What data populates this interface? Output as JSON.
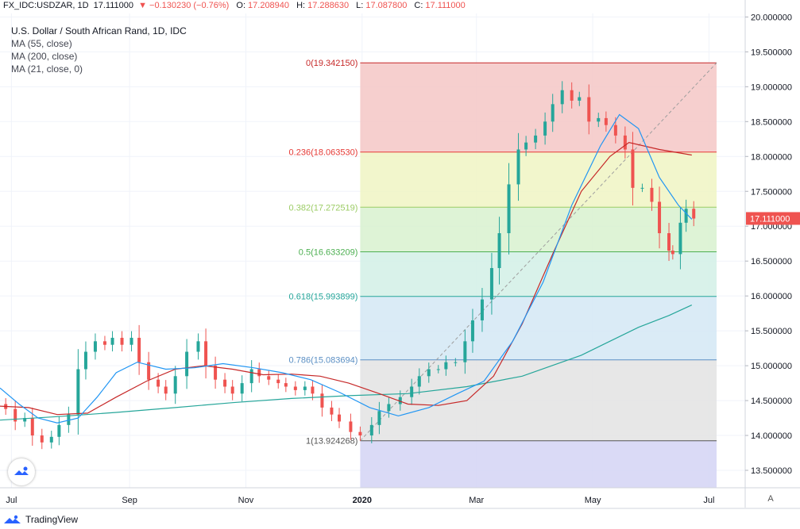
{
  "header": {
    "symbol": "FX_IDC:USDZAR, 1D",
    "last": "17.111000",
    "change": "−0.130230 (−0.76%)",
    "o_label": "O:",
    "o_value": "17.208940",
    "h_label": "H:",
    "h_value": "17.288630",
    "l_label": "L:",
    "l_value": "17.087800",
    "c_label": "C:",
    "c_value": "17.111000"
  },
  "legend": {
    "title": "U.S. Dollar / South African Rand, 1D, IDC",
    "ma1": "MA (55, close)",
    "ma2": "MA (200, close)",
    "ma3": "MA (21, close, 0)"
  },
  "footer": {
    "brand": "TradingView"
  },
  "axis_button": "A",
  "colors": {
    "up": "#26a69a",
    "down": "#ef5350",
    "ma55": "#2196f3",
    "ma200": "#26a69a",
    "ma21": "#c62828",
    "price_label_bg": "#ef5350"
  },
  "chart_data": {
    "type": "candlestick",
    "title": "U.S. Dollar / South African Rand, 1D, IDC",
    "ylim": [
      13.25,
      20.05
    ],
    "y_ticks": [
      "20.000000",
      "19.500000",
      "19.000000",
      "18.500000",
      "18.000000",
      "17.500000",
      "17.000000",
      "16.500000",
      "16.000000",
      "15.500000",
      "15.000000",
      "14.500000",
      "14.000000",
      "13.500000"
    ],
    "y_tick_values": [
      20.0,
      19.5,
      19.0,
      18.5,
      18.0,
      17.5,
      17.0,
      16.5,
      16.0,
      15.5,
      15.0,
      14.5,
      14.0,
      13.5
    ],
    "x_ticks": [
      "Jul",
      "Sep",
      "Nov",
      "2020",
      "Mar",
      "May",
      "Jul"
    ],
    "x_tick_dates": [
      "2019-07-01",
      "2019-09-01",
      "2019-11-01",
      "2020-01-01",
      "2020-03-01",
      "2020-05-01",
      "2020-07-01"
    ],
    "x_range": [
      "2019-06-25",
      "2020-07-20"
    ],
    "last_price": {
      "label": "17.111000",
      "value": 17.111
    },
    "fibonacci": {
      "start_date": "2019-12-31",
      "end_date": "2020-07-05",
      "levels": [
        {
          "label": "0(19.342150)",
          "value": 19.34215,
          "color": "#c62828",
          "fill": "#f4c7c6"
        },
        {
          "label": "0.236(18.063530)",
          "value": 18.06353,
          "color": "#e53935",
          "fill": "#f0f4c3"
        },
        {
          "label": "0.382(17.272519)",
          "value": 17.272519,
          "color": "#9ccc65",
          "fill": "#d8f1cf"
        },
        {
          "label": "0.5(16.633209)",
          "value": 16.633209,
          "color": "#4caf50",
          "fill": "#d2f0e6"
        },
        {
          "label": "0.618(15.993899)",
          "value": 15.993899,
          "color": "#26a69a",
          "fill": "#d3e7f4"
        },
        {
          "label": "0.786(15.083694)",
          "value": 15.083694,
          "color": "#5b8fc4",
          "fill": "#e3e3e3"
        },
        {
          "label": "1(13.924268)",
          "value": 13.924268,
          "color": "#555555",
          "fill": "#d3d3f5"
        }
      ],
      "trend_start": {
        "date": "2019-12-31",
        "value": 13.924268
      },
      "trend_end": {
        "date": "2020-07-05",
        "value": 19.34215
      }
    },
    "closes": [
      [
        "2019-06-26",
        14.45
      ],
      [
        "2019-06-28",
        14.38
      ],
      [
        "2019-07-03",
        14.2
      ],
      [
        "2019-07-08",
        14.25
      ],
      [
        "2019-07-12",
        14.0
      ],
      [
        "2019-07-17",
        13.9
      ],
      [
        "2019-07-22",
        13.98
      ],
      [
        "2019-07-26",
        14.15
      ],
      [
        "2019-07-31",
        14.3
      ],
      [
        "2019-08-05",
        14.95
      ],
      [
        "2019-08-09",
        15.2
      ],
      [
        "2019-08-14",
        15.35
      ],
      [
        "2019-08-19",
        15.3
      ],
      [
        "2019-08-23",
        15.4
      ],
      [
        "2019-08-28",
        15.3
      ],
      [
        "2019-09-02",
        15.4
      ],
      [
        "2019-09-06",
        15.05
      ],
      [
        "2019-09-11",
        14.8
      ],
      [
        "2019-09-16",
        14.7
      ],
      [
        "2019-09-20",
        14.6
      ],
      [
        "2019-09-25",
        14.85
      ],
      [
        "2019-10-01",
        15.2
      ],
      [
        "2019-10-07",
        15.35
      ],
      [
        "2019-10-11",
        15.0
      ],
      [
        "2019-10-16",
        14.8
      ],
      [
        "2019-10-21",
        14.7
      ],
      [
        "2019-10-25",
        14.6
      ],
      [
        "2019-10-30",
        14.75
      ],
      [
        "2019-11-04",
        14.95
      ],
      [
        "2019-11-08",
        14.85
      ],
      [
        "2019-11-13",
        14.8
      ],
      [
        "2019-11-18",
        14.75
      ],
      [
        "2019-11-22",
        14.7
      ],
      [
        "2019-11-27",
        14.65
      ],
      [
        "2019-12-02",
        14.7
      ],
      [
        "2019-12-06",
        14.6
      ],
      [
        "2019-12-11",
        14.4
      ],
      [
        "2019-12-16",
        14.3
      ],
      [
        "2019-12-20",
        14.2
      ],
      [
        "2019-12-26",
        14.05
      ],
      [
        "2019-12-31",
        14.0
      ],
      [
        "2020-01-06",
        14.15
      ],
      [
        "2020-01-10",
        14.35
      ],
      [
        "2020-01-15",
        14.45
      ],
      [
        "2020-01-21",
        14.55
      ],
      [
        "2020-01-27",
        14.7
      ],
      [
        "2020-01-31",
        14.85
      ],
      [
        "2020-02-05",
        14.95
      ],
      [
        "2020-02-10",
        14.95
      ],
      [
        "2020-02-14",
        15.05
      ],
      [
        "2020-02-19",
        15.05
      ],
      [
        "2020-02-24",
        15.35
      ],
      [
        "2020-02-28",
        15.65
      ],
      [
        "2020-03-04",
        15.95
      ],
      [
        "2020-03-09",
        16.4
      ],
      [
        "2020-03-13",
        16.9
      ],
      [
        "2020-03-18",
        17.6
      ],
      [
        "2020-03-23",
        18.1
      ],
      [
        "2020-03-27",
        18.2
      ],
      [
        "2020-04-01",
        18.3
      ],
      [
        "2020-04-06",
        18.5
      ],
      [
        "2020-04-10",
        18.75
      ],
      [
        "2020-04-15",
        18.95
      ],
      [
        "2020-04-20",
        18.8
      ],
      [
        "2020-04-24",
        18.85
      ],
      [
        "2020-04-29",
        18.5
      ],
      [
        "2020-05-04",
        18.55
      ],
      [
        "2020-05-08",
        18.45
      ],
      [
        "2020-05-13",
        18.3
      ],
      [
        "2020-05-18",
        18.1
      ],
      [
        "2020-05-22",
        17.55
      ],
      [
        "2020-05-27",
        17.55
      ],
      [
        "2020-06-01",
        17.35
      ],
      [
        "2020-06-05",
        16.9
      ],
      [
        "2020-06-10",
        16.65
      ],
      [
        "2020-06-12",
        16.6
      ],
      [
        "2020-06-16",
        17.05
      ],
      [
        "2020-06-19",
        17.25
      ],
      [
        "2020-06-23",
        17.11
      ]
    ],
    "ma55": [
      [
        "2019-06-25",
        14.68
      ],
      [
        "2019-07-05",
        14.45
      ],
      [
        "2019-07-15",
        14.25
      ],
      [
        "2019-07-25",
        14.18
      ],
      [
        "2019-08-05",
        14.25
      ],
      [
        "2019-08-15",
        14.55
      ],
      [
        "2019-08-25",
        14.9
      ],
      [
        "2019-09-05",
        15.05
      ],
      [
        "2019-09-20",
        14.95
      ],
      [
        "2019-10-05",
        14.97
      ],
      [
        "2019-10-20",
        15.03
      ],
      [
        "2019-11-05",
        14.97
      ],
      [
        "2019-11-20",
        14.9
      ],
      [
        "2019-12-05",
        14.8
      ],
      [
        "2019-12-20",
        14.62
      ],
      [
        "2020-01-05",
        14.4
      ],
      [
        "2020-01-20",
        14.28
      ],
      [
        "2020-02-05",
        14.4
      ],
      [
        "2020-02-20",
        14.6
      ],
      [
        "2020-03-05",
        14.78
      ],
      [
        "2020-03-20",
        15.35
      ],
      [
        "2020-04-05",
        16.2
      ],
      [
        "2020-04-20",
        17.3
      ],
      [
        "2020-05-05",
        18.15
      ],
      [
        "2020-05-15",
        18.6
      ],
      [
        "2020-05-25",
        18.4
      ],
      [
        "2020-06-05",
        17.7
      ],
      [
        "2020-06-15",
        17.3
      ],
      [
        "2020-06-22",
        17.1
      ]
    ],
    "ma200": [
      [
        "2019-06-25",
        14.22
      ],
      [
        "2019-07-25",
        14.27
      ],
      [
        "2019-08-25",
        14.33
      ],
      [
        "2019-09-25",
        14.4
      ],
      [
        "2019-10-25",
        14.47
      ],
      [
        "2019-11-25",
        14.53
      ],
      [
        "2019-12-25",
        14.57
      ],
      [
        "2020-01-25",
        14.6
      ],
      [
        "2020-02-25",
        14.7
      ],
      [
        "2020-03-25",
        14.85
      ],
      [
        "2020-04-25",
        15.15
      ],
      [
        "2020-05-25",
        15.55
      ],
      [
        "2020-06-10",
        15.72
      ],
      [
        "2020-06-22",
        15.87
      ]
    ],
    "ma21": [
      [
        "2019-06-25",
        14.42
      ],
      [
        "2019-07-10",
        14.4
      ],
      [
        "2019-07-25",
        14.3
      ],
      [
        "2019-08-10",
        14.32
      ],
      [
        "2019-08-25",
        14.55
      ],
      [
        "2019-09-10",
        14.78
      ],
      [
        "2019-09-25",
        14.95
      ],
      [
        "2019-10-10",
        15.0
      ],
      [
        "2019-10-25",
        14.95
      ],
      [
        "2019-11-10",
        14.87
      ],
      [
        "2019-11-25",
        14.88
      ],
      [
        "2019-12-10",
        14.85
      ],
      [
        "2019-12-25",
        14.75
      ],
      [
        "2020-01-10",
        14.6
      ],
      [
        "2020-01-25",
        14.45
      ],
      [
        "2020-02-10",
        14.43
      ],
      [
        "2020-02-25",
        14.5
      ],
      [
        "2020-03-10",
        14.85
      ],
      [
        "2020-03-25",
        15.6
      ],
      [
        "2020-04-10",
        16.6
      ],
      [
        "2020-04-25",
        17.5
      ],
      [
        "2020-05-10",
        18.0
      ],
      [
        "2020-05-20",
        18.2
      ],
      [
        "2020-06-05",
        18.1
      ],
      [
        "2020-06-22",
        18.02
      ]
    ]
  }
}
